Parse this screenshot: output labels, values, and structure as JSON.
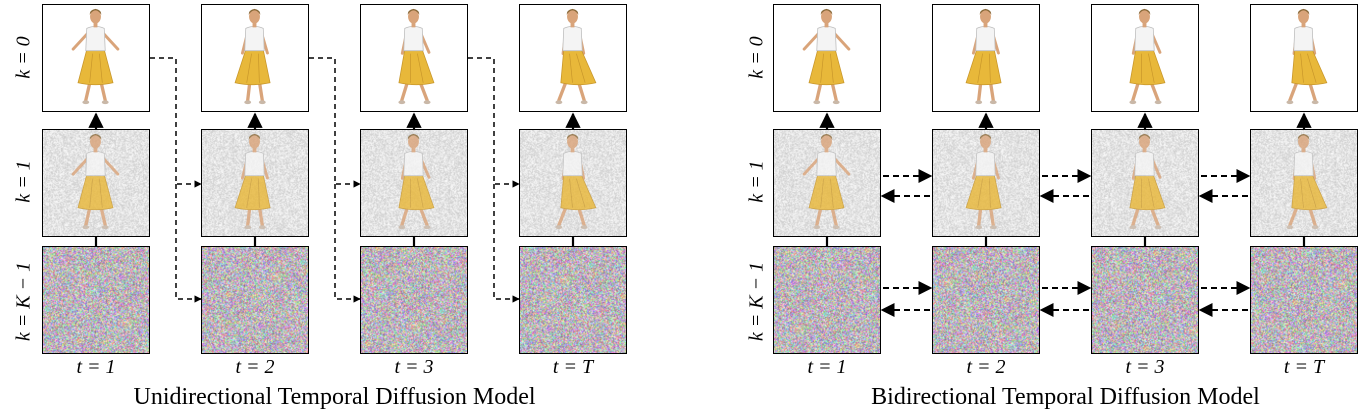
{
  "panels": [
    {
      "id": "unidirectional",
      "caption": "Unidirectional Temporal Diffusion Model",
      "row_labels": [
        "k = 0",
        "k = 1",
        "k = K − 1"
      ],
      "column_labels": [
        "t = 1",
        "t = 2",
        "t = 3",
        "t = T"
      ],
      "connection_style": "dashed forward arrows from each timestep to the next row frame"
    },
    {
      "id": "bidirectional",
      "caption": "Bidirectional Temporal Diffusion Model",
      "row_labels": [
        "k = 0",
        "k = 1",
        "k = K − 1"
      ],
      "column_labels": [
        "t = 1",
        "t = 2",
        "t = 3",
        "t = T"
      ],
      "connection_style": "dashed arrows in both directions between neighbouring timesteps"
    }
  ],
  "rows": [
    "clean frame",
    "partially noisy frame",
    "pure noise"
  ],
  "colors": {
    "skirt": "#e8b83a",
    "skin": "#d9a47a",
    "hair": "#8a6a3a",
    "shirt": "#f4f4f4",
    "arrow": "#000000"
  }
}
